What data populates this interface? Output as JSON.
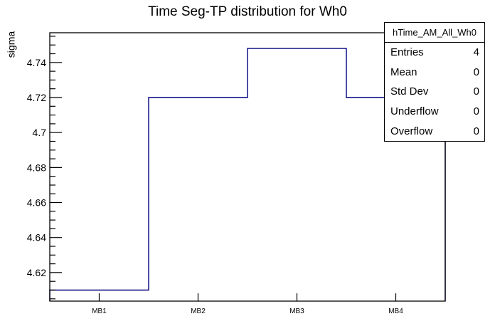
{
  "chart_data": {
    "type": "bar",
    "subtype": "root-step-histogram",
    "title": "Time Seg-TP distribution for Wh0",
    "xlabel": "",
    "ylabel": "sigma",
    "categories": [
      "MB1",
      "MB2",
      "MB3",
      "MB4"
    ],
    "values": [
      4.61,
      4.72,
      4.748,
      4.72
    ],
    "ylim": [
      4.6037,
      4.757
    ],
    "yticks": [
      4.62,
      4.64,
      4.66,
      4.68,
      4.7,
      4.72,
      4.74
    ],
    "ytick_labels": [
      "4.62",
      "4.64",
      "4.66",
      "4.68",
      "4.7",
      "4.72",
      "4.74"
    ],
    "y_minor_tick_step": 0.005,
    "grid": false,
    "legend_position": "none",
    "line_color": "#000080",
    "axis_color": "#000000"
  },
  "stats_box": {
    "title": "hTime_AM_All_Wh0",
    "rows": [
      {
        "label": "Entries",
        "value": "4"
      },
      {
        "label": "Mean",
        "value": "0"
      },
      {
        "label": "Std Dev",
        "value": "0"
      },
      {
        "label": "Underflow",
        "value": "0"
      },
      {
        "label": "Overflow",
        "value": "0"
      }
    ]
  }
}
